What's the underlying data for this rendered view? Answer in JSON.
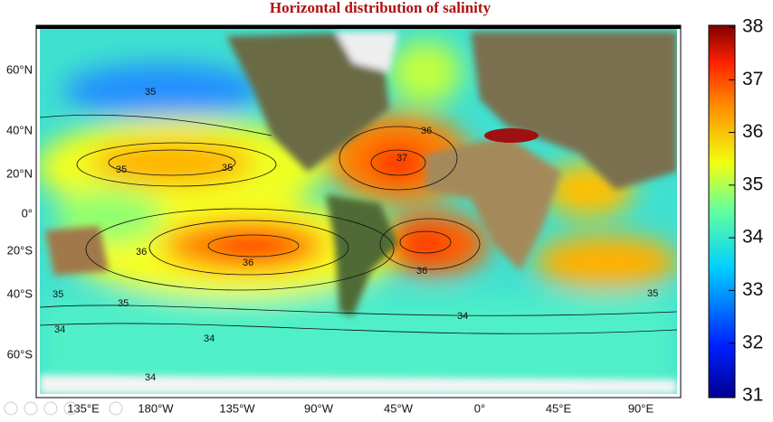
{
  "title": "Horizontal distribution of salinity",
  "map": {
    "lat_labels": [
      "60°N",
      "40°N",
      "20°N",
      "0°",
      "20°S",
      "40°S",
      "60°S"
    ],
    "lon_labels": [
      "135°E",
      "180°W",
      "135°W",
      "90°W",
      "45°W",
      "0°",
      "45°E",
      "90°E"
    ],
    "contour_labels": [
      "35",
      "35",
      "35",
      "36",
      "37",
      "36",
      "36",
      "35",
      "36",
      "35",
      "34",
      "34",
      "34",
      "35",
      "34"
    ]
  },
  "colorbar": {
    "lim": [
      31,
      38
    ],
    "ticks": [
      31,
      32,
      33,
      34,
      35,
      36,
      37,
      38
    ]
  }
}
